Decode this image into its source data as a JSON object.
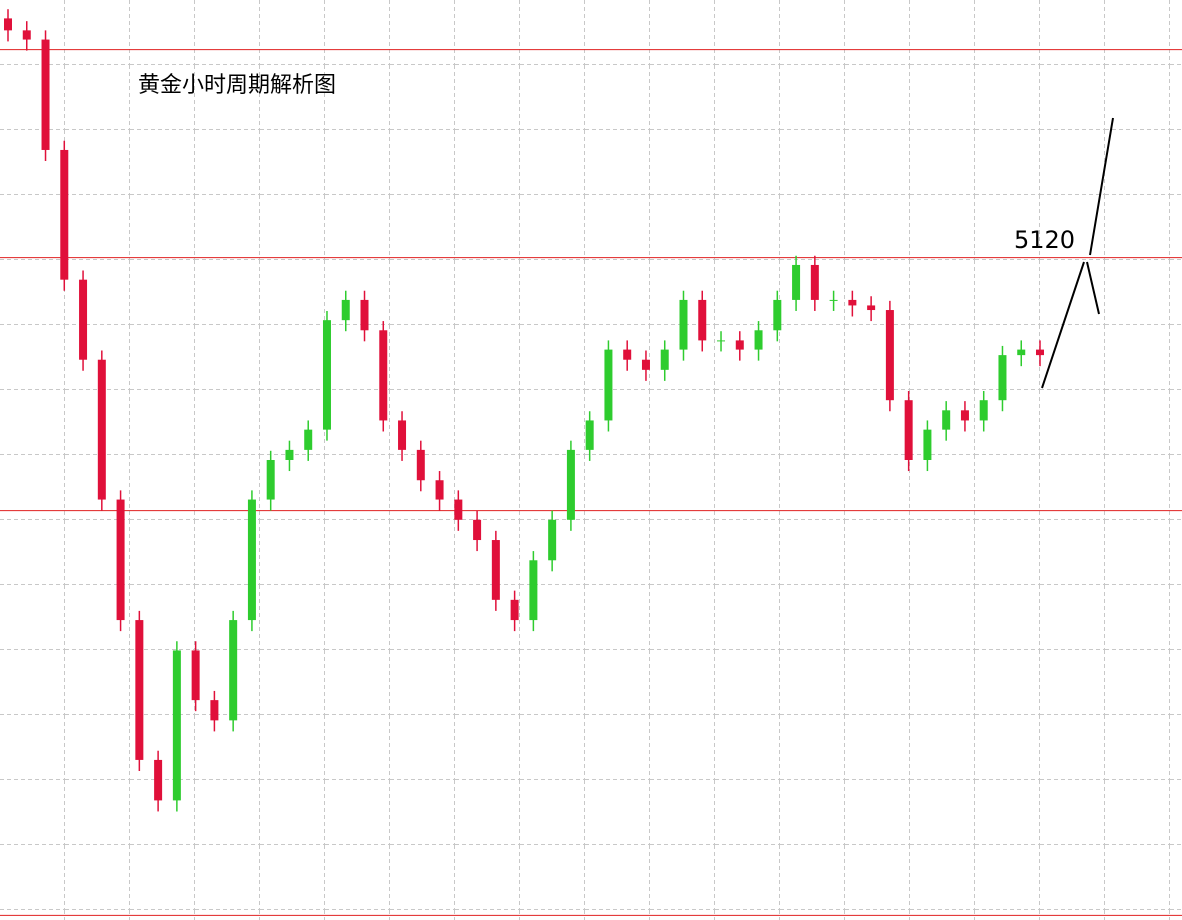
{
  "chart_data": {
    "type": "candlestick",
    "title": "黄金小时周期解析图",
    "annotation": "5120",
    "ylim": [
      4400,
      5400
    ],
    "up_color": "#2ecc2e",
    "down_color": "#e0103a",
    "level_color": "#e02020",
    "levels": [
      5346,
      5120,
      4845,
      4405
    ],
    "open": [
      5380,
      5367,
      5357,
      5237,
      5096,
      5009,
      4857,
      4726,
      4574,
      4530,
      4693,
      4639,
      4617,
      4726,
      4857,
      4900,
      4911,
      4933,
      5052,
      5074,
      5041,
      4943,
      4911,
      4878,
      4857,
      4835,
      4813,
      4748,
      4726,
      4791,
      4835,
      4911,
      4943,
      5020,
      5009,
      4998,
      5020,
      5074,
      5030,
      5030,
      5020,
      5041,
      5074,
      5112,
      5074,
      5074,
      5068,
      5063,
      4965,
      4900,
      4933,
      4954,
      4943,
      4965,
      5014,
      5020
    ],
    "high": [
      5390,
      5377,
      5367,
      5247,
      5106,
      5019,
      4867,
      4736,
      4584,
      4703,
      4703,
      4649,
      4736,
      4867,
      4910,
      4921,
      4943,
      5062,
      5084,
      5084,
      5051,
      4953,
      4921,
      4888,
      4867,
      4845,
      4823,
      4758,
      4801,
      4845,
      4921,
      4953,
      5030,
      5030,
      5019,
      5030,
      5084,
      5084,
      5040,
      5040,
      5051,
      5084,
      5122,
      5122,
      5084,
      5084,
      5078,
      5073,
      4975,
      4943,
      4964,
      4964,
      4975,
      5024,
      5030,
      5030
    ],
    "low": [
      5355,
      5345,
      5225,
      5084,
      4997,
      4845,
      4714,
      4562,
      4518,
      4518,
      4627,
      4605,
      4605,
      4714,
      4845,
      4888,
      4899,
      4921,
      5040,
      5029,
      4931,
      4899,
      4866,
      4845,
      4823,
      4801,
      4736,
      4714,
      4714,
      4779,
      4823,
      4899,
      4931,
      4997,
      4986,
      4986,
      5008,
      5018,
      5018,
      5008,
      5008,
      5029,
      5062,
      5062,
      5062,
      5056,
      5051,
      4953,
      4888,
      4888,
      4921,
      4931,
      4931,
      4953,
      5002,
      5002
    ],
    "close": [
      5367,
      5357,
      5237,
      5096,
      5009,
      4857,
      4726,
      4574,
      4530,
      4693,
      4639,
      4617,
      4726,
      4857,
      4900,
      4911,
      4933,
      5052,
      5074,
      5041,
      4943,
      4911,
      4878,
      4857,
      4835,
      4813,
      4748,
      4726,
      4791,
      4835,
      4911,
      4943,
      5020,
      5009,
      4998,
      5020,
      5074,
      5030,
      5030,
      5020,
      5041,
      5074,
      5112,
      5074,
      5074,
      5068,
      5063,
      4965,
      4900,
      4933,
      4954,
      4943,
      4965,
      5014,
      5020,
      5014
    ]
  }
}
